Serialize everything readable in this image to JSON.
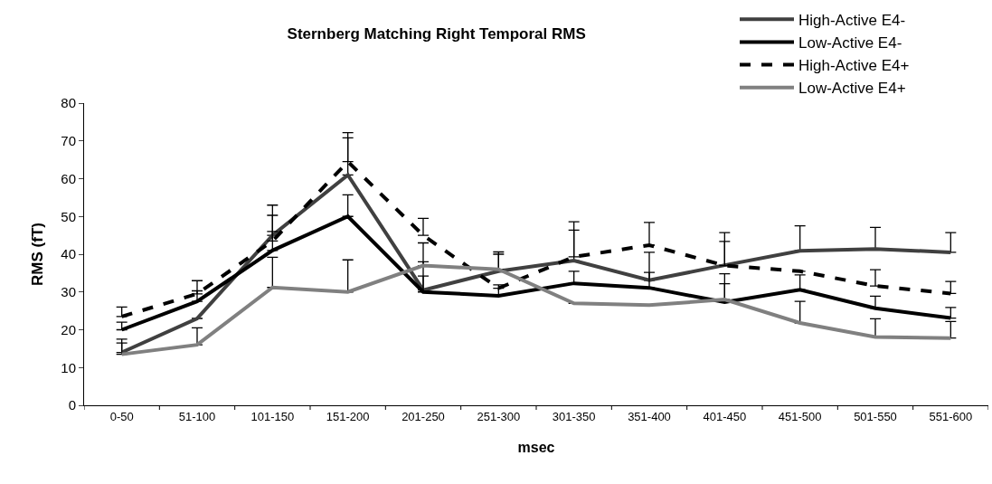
{
  "chart_data": {
    "type": "line",
    "title": "Sternberg Matching Right Temporal RMS",
    "xlabel": "msec",
    "ylabel": "RMS (fT)",
    "categories": [
      "0-50",
      "51-100",
      "101-150",
      "151-200",
      "201-250",
      "251-300",
      "301-350",
      "351-400",
      "401-450",
      "451-500",
      "501-550",
      "551-600"
    ],
    "ylim": [
      0,
      80
    ],
    "yticks": [
      0,
      10,
      20,
      30,
      40,
      50,
      60,
      70,
      80
    ],
    "legend": "top right",
    "series": [
      {
        "name": "High-Active E4-",
        "color": "#404040",
        "line_style": "solid",
        "values": [
          14,
          23,
          45,
          61,
          30.5,
          35.5,
          38.3,
          33.1,
          37.1,
          40.9,
          41.4,
          40.5
        ],
        "errors": [
          [
            14,
            17.5
          ],
          null,
          [
            45,
            53
          ],
          [
            61,
            70.8
          ],
          [
            30.5,
            38
          ],
          [
            35.5,
            40.6
          ],
          [
            38.3,
            46.4
          ],
          [
            33.1,
            40.5
          ],
          [
            37.1,
            45.7
          ],
          [
            40.9,
            47.5
          ],
          [
            41.4,
            47.1
          ],
          [
            40.5,
            45.7
          ]
        ]
      },
      {
        "name": "Low-Active E4-",
        "color": "#000000",
        "line_style": "solid",
        "values": [
          20,
          27.5,
          41,
          50,
          30,
          29,
          32.3,
          31.1,
          27.3,
          30.6,
          25.7,
          23.1
        ],
        "errors": [
          [
            20,
            22
          ],
          [
            27.5,
            30.3
          ],
          [
            41,
            46
          ],
          [
            50,
            55.7
          ],
          [
            30,
            34.2
          ],
          [
            29,
            31.9
          ],
          [
            32.3,
            35.5
          ],
          [
            31.1,
            35.2
          ],
          [
            27.3,
            32.2
          ],
          [
            30.6,
            34.5
          ],
          [
            25.7,
            28.9
          ],
          [
            23.1,
            25.9
          ]
        ]
      },
      {
        "name": "High-Active E4+",
        "color": "#000000",
        "line_style": "dashed",
        "values": [
          23.5,
          29.5,
          43.5,
          64.5,
          45,
          31,
          39.3,
          42.4,
          37,
          35.5,
          31.6,
          29.6
        ],
        "errors": [
          [
            23.5,
            26
          ],
          [
            29.5,
            33
          ],
          [
            43.5,
            50.3
          ],
          [
            64.5,
            72.2
          ],
          [
            45,
            49.5
          ],
          null,
          [
            39.3,
            48.6
          ],
          [
            42.4,
            48.4
          ],
          [
            37,
            43.4
          ],
          null,
          [
            31.6,
            35.9
          ],
          [
            29.6,
            32.8
          ]
        ]
      },
      {
        "name": "Low-Active E4+",
        "color": "#808080",
        "line_style": "solid",
        "values": [
          13.5,
          16,
          31.2,
          30,
          37,
          36,
          27,
          26.5,
          28,
          21.8,
          18.1,
          17.8
        ],
        "errors": [
          [
            13.5,
            16.5
          ],
          [
            16,
            20.5
          ],
          [
            31.2,
            39.2
          ],
          [
            30,
            38.5
          ],
          [
            37,
            43
          ],
          [
            36,
            40
          ],
          null,
          null,
          [
            28,
            34.8
          ],
          [
            21.8,
            27.5
          ],
          [
            18.1,
            22.9
          ],
          [
            17.8,
            22.2
          ]
        ]
      }
    ]
  }
}
